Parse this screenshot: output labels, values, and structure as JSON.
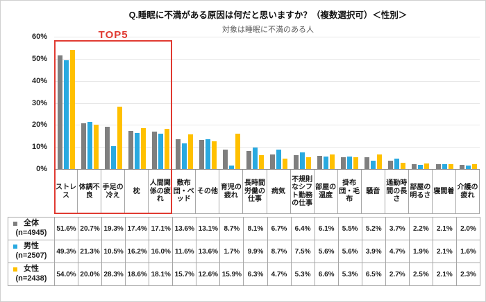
{
  "title": "Q.睡眠に不満がある原因は何だと思いますか？（複数選択可）＜性別＞",
  "subtitle": "対象は睡眠に不満のある人",
  "top5": {
    "label": "TOP5",
    "count": 5,
    "box_color": "#e03a31"
  },
  "colors": {
    "overall": "#7f7f7f",
    "male": "#29a9e0",
    "female": "#ffc000",
    "grid": "#e7e7e7",
    "axis": "#8c8c8c",
    "table_border": "#a6a6a6",
    "subtitle_text": "#595959"
  },
  "chart_data": {
    "type": "bar",
    "title": "Q.睡眠に不満がある原因は何だと思いますか？（複数選択可）＜性別＞",
    "subtitle": "対象は睡眠に不満のある人",
    "xlabel": "",
    "ylabel": "",
    "ylim": [
      0,
      60
    ],
    "yticks": [
      60,
      50,
      40,
      30,
      20,
      10,
      0
    ],
    "ytick_suffix": "%",
    "grid": true,
    "legend_position": "table-left",
    "categories": [
      "ストレス",
      "体調不良",
      "手足の冷え",
      "枕",
      "人間関係の疲れ",
      "敷布団・ベッド",
      "その他",
      "育児の疲れ",
      "長時間労働の仕事",
      "病気",
      "不規則なシフト勤務の仕事",
      "部屋の温度",
      "掛布団・毛布",
      "騒音",
      "通勤時間の長さ",
      "部屋の明るさ",
      "寝間着",
      "介護の疲れ"
    ],
    "series": [
      {
        "name": "全体",
        "n_label": "(n=4945)",
        "color_key": "overall",
        "values": [
          51.6,
          20.7,
          19.3,
          17.4,
          17.1,
          13.6,
          13.1,
          8.7,
          8.1,
          6.7,
          6.4,
          6.1,
          5.5,
          5.2,
          3.7,
          2.2,
          2.1,
          2.0
        ]
      },
      {
        "name": "男性",
        "n_label": "(n=2507)",
        "color_key": "male",
        "values": [
          49.3,
          21.3,
          10.5,
          16.2,
          16.0,
          11.6,
          13.6,
          1.7,
          9.9,
          8.7,
          7.5,
          5.6,
          5.6,
          3.9,
          4.7,
          1.9,
          2.1,
          1.6
        ]
      },
      {
        "name": "女性",
        "n_label": "(n=2438)",
        "color_key": "female",
        "values": [
          54.0,
          20.0,
          28.3,
          18.6,
          18.1,
          15.7,
          12.6,
          15.9,
          6.3,
          4.7,
          5.3,
          6.6,
          5.3,
          6.5,
          2.7,
          2.5,
          2.1,
          2.3
        ]
      }
    ]
  }
}
